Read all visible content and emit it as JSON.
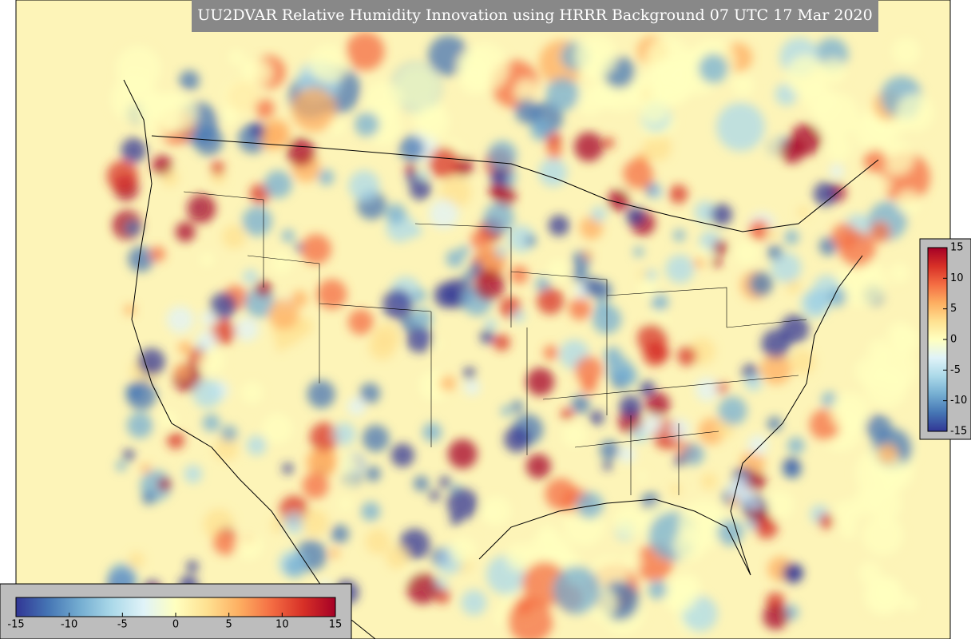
{
  "title": "UU2DVAR Relative Humidity Innovation using HRRR Background 07 UTC 17 Mar 2020",
  "colorbar": {
    "range": [
      -15,
      15
    ],
    "ticks": [
      -15,
      -10,
      -5,
      0,
      5,
      10,
      15
    ],
    "colormap": [
      "#313695",
      "#4575b4",
      "#74add1",
      "#abd9e9",
      "#e0f3f8",
      "#ffffbf",
      "#fee090",
      "#fdae61",
      "#f46d43",
      "#d73027",
      "#a50026"
    ]
  }
}
